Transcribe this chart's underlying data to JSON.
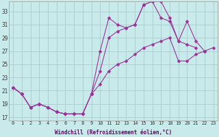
{
  "xlabel": "Windchill (Refroidissement éolien,°C)",
  "bg_color": "#c8eaea",
  "line_color": "#993399",
  "grid_color": "#aacccc",
  "xlim": [
    -0.5,
    23.5
  ],
  "ylim": [
    16.5,
    34.5
  ],
  "yticks": [
    17,
    19,
    21,
    23,
    25,
    27,
    29,
    31,
    33
  ],
  "xticks": [
    0,
    1,
    2,
    3,
    4,
    5,
    6,
    7,
    8,
    9,
    10,
    11,
    12,
    13,
    14,
    15,
    16,
    17,
    18,
    19,
    20,
    21,
    22,
    23
  ],
  "line1_x": [
    0,
    1,
    2,
    3,
    4,
    5,
    6,
    7,
    8,
    9,
    10,
    11,
    12,
    13,
    14,
    15,
    16,
    17,
    18,
    19,
    20,
    21
  ],
  "line1_y": [
    21.5,
    20.5,
    18.5,
    19.0,
    18.5,
    17.8,
    17.5,
    17.5,
    17.5,
    20.5,
    27.0,
    32.0,
    31.0,
    30.5,
    31.0,
    34.0,
    34.5,
    34.5,
    32.0,
    28.5,
    28.0,
    27.5
  ],
  "line2_x": [
    0,
    1,
    2,
    3,
    4,
    5,
    6,
    7,
    8,
    9,
    10,
    11,
    12,
    13,
    14,
    15,
    16,
    17,
    18,
    19,
    20,
    21,
    22
  ],
  "line2_y": [
    21.5,
    20.5,
    18.5,
    19.0,
    18.5,
    17.8,
    17.5,
    17.5,
    17.5,
    20.5,
    24.0,
    29.0,
    30.0,
    30.5,
    31.0,
    34.0,
    34.5,
    32.0,
    31.5,
    28.5,
    31.5,
    28.5,
    27.0
  ],
  "line3_x": [
    0,
    1,
    2,
    3,
    4,
    5,
    6,
    7,
    8,
    9,
    10,
    11,
    12,
    13,
    14,
    15,
    16,
    17,
    18,
    19,
    20,
    21,
    22,
    23
  ],
  "line3_y": [
    21.5,
    20.5,
    18.5,
    19.0,
    18.5,
    17.8,
    17.5,
    17.5,
    17.5,
    20.5,
    22.0,
    24.0,
    25.0,
    25.5,
    26.5,
    27.5,
    28.0,
    28.5,
    29.0,
    25.5,
    25.5,
    26.5,
    27.0,
    27.5
  ],
  "markersize": 2.5,
  "linewidth": 0.8
}
